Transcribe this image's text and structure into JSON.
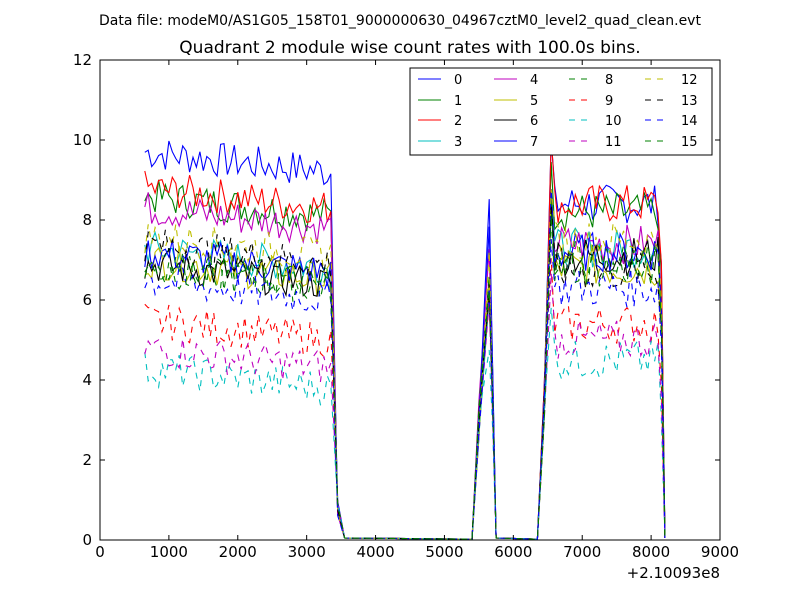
{
  "figure": {
    "suptitle": "Data file: modeM0/AS1G05_158T01_9000000630_04967cztM0_level2_quad_clean.evt",
    "title": "Quadrant 2 module wise count rates with 100.0s bins.",
    "x_offset_label": "+2.10093e8"
  },
  "chart_data": {
    "type": "line",
    "title": "Quadrant 2 module wise count rates with 100.0s bins.",
    "xlabel": "",
    "ylabel": "",
    "xlim": [
      0,
      9000
    ],
    "ylim": [
      0,
      12
    ],
    "x_offset": 210093000,
    "xticks": [
      0,
      1000,
      2000,
      3000,
      4000,
      5000,
      6000,
      7000,
      8000,
      9000
    ],
    "yticks": [
      0,
      2,
      4,
      6,
      8,
      10,
      12
    ],
    "xtick_labels": [
      "0",
      "1000",
      "2000",
      "3000",
      "4000",
      "5000",
      "6000",
      "7000",
      "8000",
      "9000"
    ],
    "ytick_labels": [
      "0",
      "2",
      "4",
      "6",
      "8",
      "10",
      "12"
    ],
    "grid": false,
    "legend_position": "top-right",
    "legend_columns": 4,
    "segments": [
      {
        "x_start": 650,
        "x_end": 3350
      },
      {
        "x_start": 5450,
        "x_end": 5750
      },
      {
        "x_start": 6350,
        "x_end": 8200
      }
    ],
    "series": [
      {
        "name": "0",
        "color": "#0000ff",
        "dash": "solid",
        "levels": [
          9.7,
          8.4,
          8.4
        ]
      },
      {
        "name": "1",
        "color": "#008000",
        "dash": "solid",
        "levels": [
          8.6,
          7.6,
          8.2
        ]
      },
      {
        "name": "2",
        "color": "#ff0000",
        "dash": "solid",
        "levels": [
          8.8,
          7.4,
          8.4
        ]
      },
      {
        "name": "3",
        "color": "#00bfbf",
        "dash": "solid",
        "levels": [
          7.3,
          7.0,
          7.3
        ]
      },
      {
        "name": "4",
        "color": "#bf00bf",
        "dash": "solid",
        "levels": [
          8.3,
          7.2,
          7.4
        ]
      },
      {
        "name": "5",
        "color": "#bfbf00",
        "dash": "solid",
        "levels": [
          7.0,
          7.1,
          6.8
        ]
      },
      {
        "name": "6",
        "color": "#000000",
        "dash": "solid",
        "levels": [
          6.9,
          7.0,
          7.1
        ]
      },
      {
        "name": "7",
        "color": "#0000ff",
        "dash": "solid",
        "levels": [
          7.2,
          8.4,
          7.2
        ]
      },
      {
        "name": "8",
        "color": "#008000",
        "dash": "dashed",
        "levels": [
          6.8,
          6.8,
          7.0
        ]
      },
      {
        "name": "9",
        "color": "#ff0000",
        "dash": "dashed",
        "levels": [
          5.5,
          6.5,
          5.4
        ]
      },
      {
        "name": "10",
        "color": "#00bfbf",
        "dash": "dashed",
        "levels": [
          4.3,
          5.5,
          4.5
        ]
      },
      {
        "name": "11",
        "color": "#bf00bf",
        "dash": "dashed",
        "levels": [
          4.8,
          6.0,
          5.0
        ]
      },
      {
        "name": "12",
        "color": "#bfbf00",
        "dash": "dashed",
        "levels": [
          7.6,
          7.2,
          7.5
        ]
      },
      {
        "name": "13",
        "color": "#000000",
        "dash": "dashed",
        "levels": [
          7.4,
          6.8,
          6.7
        ]
      },
      {
        "name": "14",
        "color": "#0000ff",
        "dash": "dashed",
        "levels": [
          6.5,
          6.5,
          6.3
        ]
      },
      {
        "name": "15",
        "color": "#008000",
        "dash": "dashed",
        "levels": [
          6.9,
          6.9,
          6.8
        ]
      }
    ]
  }
}
